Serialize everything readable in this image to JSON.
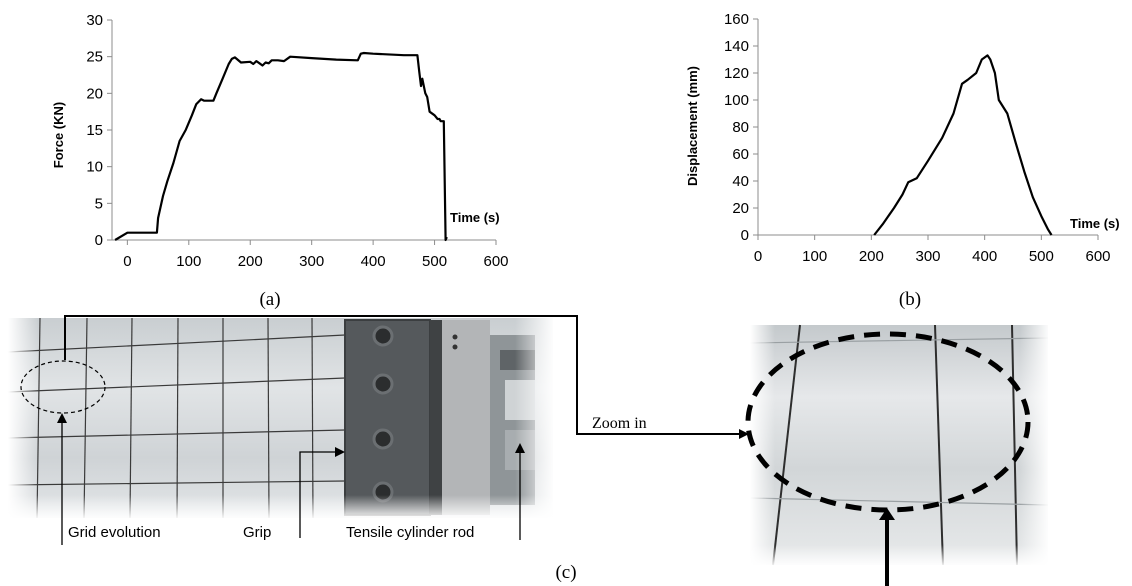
{
  "chart_data": [
    {
      "type": "line",
      "panel": "(a)",
      "xlabel": "Time (s)",
      "ylabel": "Force (KN)",
      "xlim": [
        -25,
        600
      ],
      "ylim": [
        0,
        30
      ],
      "xticks": [
        0,
        100,
        200,
        300,
        400,
        500,
        600
      ],
      "yticks": [
        0,
        5,
        10,
        15,
        20,
        25,
        30
      ],
      "grid": false,
      "series": [
        {
          "x": [
            -20,
            0,
            48,
            50,
            58,
            65,
            75,
            85,
            95,
            105,
            112,
            120,
            125,
            140,
            145,
            155,
            165,
            170,
            175,
            185,
            200,
            205,
            210,
            215,
            220,
            225,
            230,
            235,
            245,
            255,
            265,
            300,
            340,
            375,
            380,
            385,
            400,
            450,
            472,
            475,
            478,
            480,
            485,
            488,
            492,
            500,
            505,
            508,
            510,
            515,
            518,
            520
          ],
          "y": [
            0,
            1,
            1,
            3,
            6,
            8,
            10.5,
            13.5,
            15,
            17,
            18.5,
            19.2,
            19,
            19,
            20,
            22,
            24,
            24.7,
            24.9,
            24.2,
            24.3,
            24,
            24.4,
            24.1,
            23.8,
            24.2,
            24.1,
            24.5,
            24.5,
            24.4,
            25,
            24.8,
            24.6,
            24.5,
            25.4,
            25.5,
            25.4,
            25.2,
            25.2,
            23,
            21,
            22,
            20,
            19.5,
            17.5,
            17,
            16.5,
            16.5,
            16.2,
            16.2,
            0,
            0.4
          ]
        }
      ]
    },
    {
      "type": "line",
      "panel": "(b)",
      "xlabel": "Time (s)",
      "ylabel": "Displacement (mm)",
      "xlim": [
        0,
        600
      ],
      "ylim": [
        0,
        160
      ],
      "xticks": [
        0,
        100,
        200,
        300,
        400,
        500,
        600
      ],
      "yticks": [
        0,
        20,
        40,
        60,
        80,
        100,
        120,
        140,
        160
      ],
      "grid": false,
      "series": [
        {
          "x": [
            205,
            220,
            240,
            255,
            265,
            280,
            300,
            325,
            345,
            360,
            370,
            385,
            395,
            405,
            410,
            418,
            425,
            440,
            455,
            470,
            485,
            500,
            512,
            518
          ],
          "y": [
            0,
            8,
            20,
            30,
            39,
            42,
            55,
            72,
            90,
            112,
            115,
            120,
            130,
            133,
            130,
            120,
            100,
            90,
            68,
            47,
            28,
            14,
            4,
            0
          ]
        }
      ]
    }
  ],
  "captions": {
    "a": "(a)",
    "b": "(b)",
    "c": "(c)"
  },
  "photo": {
    "labels": {
      "grid": "Grid evolution",
      "grip": "Grip",
      "rod": "Tensile cylinder rod",
      "zoom": "Zoom in"
    }
  },
  "colors": {
    "line": "#000000",
    "axis": "#8c8c8c"
  }
}
